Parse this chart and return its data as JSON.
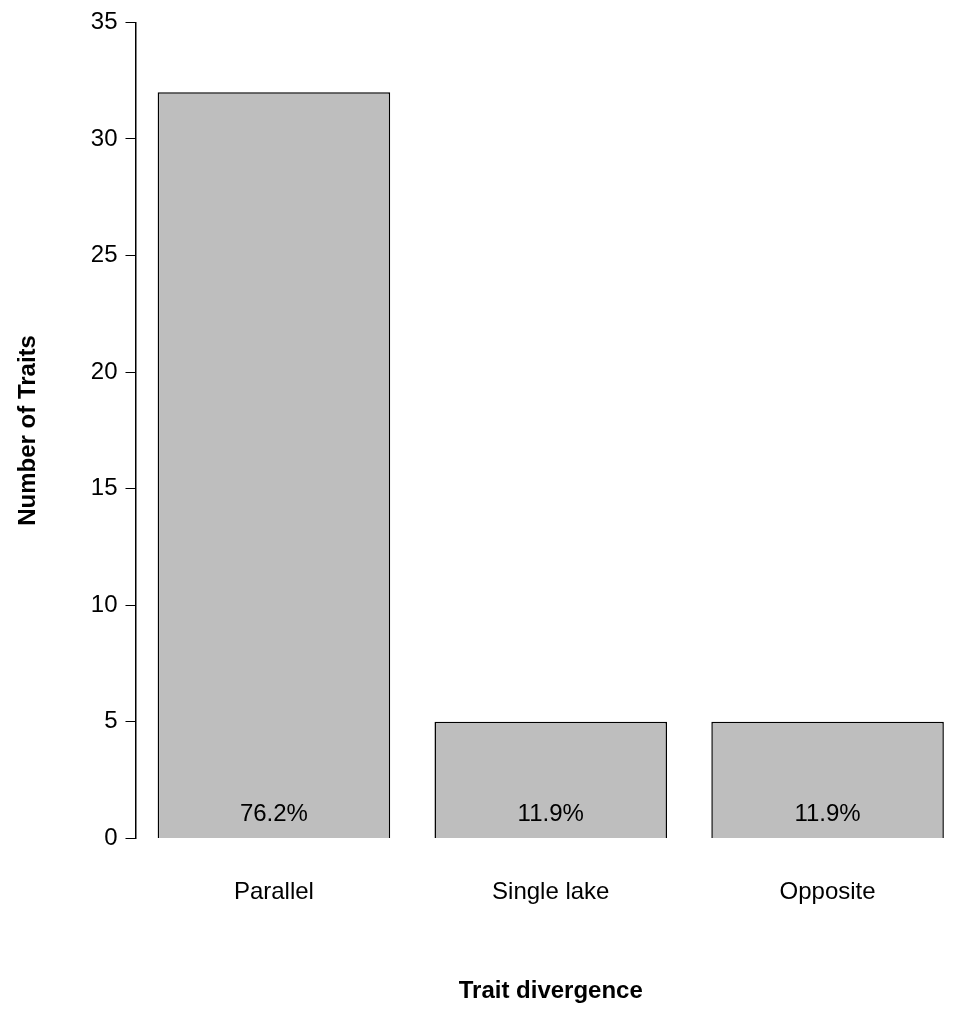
{
  "chart_data": {
    "type": "bar",
    "xlabel": "Trait divergence",
    "ylabel": "Number of Traits",
    "categories": [
      "Parallel",
      "Single lake",
      "Opposite"
    ],
    "values": [
      32,
      5,
      5
    ],
    "color": "#bebebe",
    "annotations": [
      "76.2%",
      "11.9%",
      "11.9%"
    ],
    "ylim": [
      0,
      35
    ],
    "yticks": [
      0,
      5,
      10,
      15,
      20,
      25,
      30,
      35
    ],
    "grid": false,
    "legend": false
  }
}
